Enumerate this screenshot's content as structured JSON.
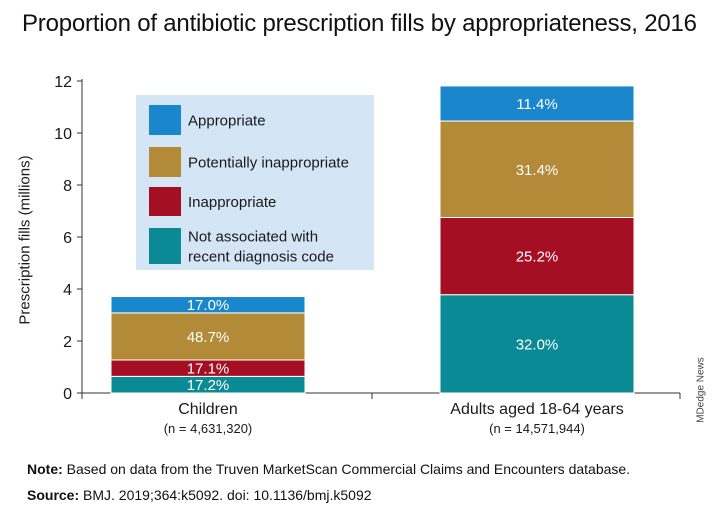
{
  "title": "Proportion of antibiotic prescription fills by appropriateness, 2016",
  "credit": "MDedge News",
  "footer": {
    "note_label": "Note:",
    "note_text": " Based on data from the Truven MarketScan Commercial Claims and Encounters database.",
    "source_label": "Source:",
    "source_text": " BMJ. 2019;364:k5092. doi: 10.1136/bmj.k5092"
  },
  "chart_data": {
    "type": "bar",
    "stacked": true,
    "ylabel": "Prescription fills (millions)",
    "xlabel": "",
    "ylim": [
      0,
      12
    ],
    "yticks": [
      0,
      2,
      4,
      6,
      8,
      10,
      12
    ],
    "grid": false,
    "legend_placement": "top-left",
    "categories": [
      {
        "label": "Children",
        "sublabel": "(n = 4,631,320)"
      },
      {
        "label": "Adults aged 18-64 years",
        "sublabel": "(n = 14,571,944)"
      }
    ],
    "series": [
      {
        "name": "Not associated with recent diagnosis code",
        "legend_lines": [
          "Not associated with",
          "recent diagnosis code"
        ],
        "color": "#0a8a94",
        "values": [
          0.64,
          3.78
        ],
        "labels": [
          "17.2%",
          "32.0%"
        ]
      },
      {
        "name": "Inappropriate",
        "legend_lines": [
          "Inappropriate"
        ],
        "color": "#a50f24",
        "values": [
          0.63,
          2.97
        ],
        "labels": [
          "17.1%",
          "25.2%"
        ]
      },
      {
        "name": "Potentially inappropriate",
        "legend_lines": [
          "Potentially inappropriate"
        ],
        "color": "#b38b38",
        "values": [
          1.81,
          3.71
        ],
        "labels": [
          "48.7%",
          "31.4%"
        ]
      },
      {
        "name": "Appropriate",
        "legend_lines": [
          "Appropriate"
        ],
        "color": "#1a86cc",
        "values": [
          0.63,
          1.35
        ],
        "labels": [
          "17.0%",
          "11.4%"
        ]
      }
    ],
    "legend_order": [
      3,
      2,
      1,
      0
    ],
    "legend_bg": "#d4e5f5",
    "axis_color": "#333333"
  }
}
